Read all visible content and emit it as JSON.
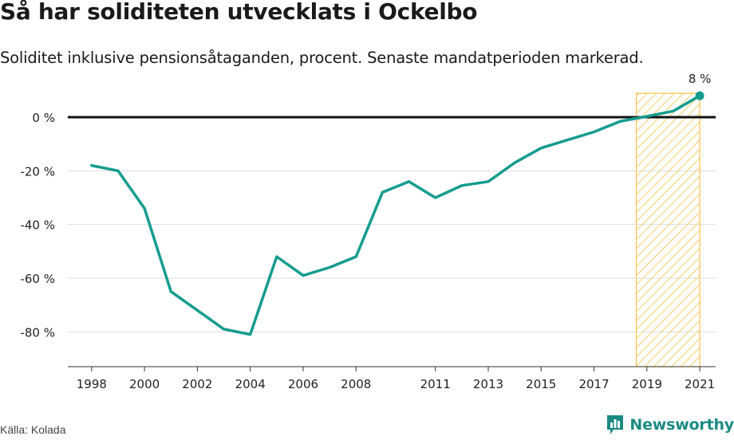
{
  "title": "Så har soliditeten utvecklats i Ockelbo",
  "subtitle": "Soliditet inklusive pensionsåtaganden, procent. Senaste mandatperioden markerad.",
  "source": "Källa: Kolada",
  "brand": "Newsworthy",
  "colors": {
    "line": "#159c8f",
    "highlight": "#f5c24a",
    "zero": "#111111",
    "grid": "#dddddd"
  },
  "chart_data": {
    "type": "line",
    "title": "Så har soliditeten utvecklats i Ockelbo",
    "subtitle": "Soliditet inklusive pensionsåtaganden, procent. Senaste mandatperioden markerad.",
    "xlabel": "",
    "ylabel": "",
    "ylim": [
      -93,
      11
    ],
    "xlim": [
      1997.1,
      2021.6
    ],
    "yticks": [
      0,
      -20,
      -40,
      -60,
      -80
    ],
    "ytick_labels": [
      "0 %",
      "-20 %",
      "-40 %",
      "-60 %",
      "-80 %"
    ],
    "xticks": [
      1998,
      2000,
      2002,
      2004,
      2006,
      2008,
      2011,
      2013,
      2015,
      2017,
      2019,
      2021
    ],
    "xtick_labels": [
      "1998",
      "2000",
      "2002",
      "2004",
      "2006",
      "2008",
      "2011",
      "2013",
      "2015",
      "2017",
      "2019",
      "2021"
    ],
    "grid": true,
    "highlight_period": [
      2018.6,
      2021
    ],
    "end_label": "8 %",
    "series": [
      {
        "x": [
          1998,
          1999,
          2000,
          2001,
          2002,
          2003,
          2004,
          2005,
          2006,
          2007,
          2008,
          2009,
          2010,
          2011,
          2012,
          2013,
          2014,
          2015,
          2016,
          2017,
          2018,
          2019,
          2020,
          2021
        ],
        "values": [
          -18,
          -20,
          -34,
          -65,
          -72,
          -79,
          -81,
          -52,
          -59,
          -56,
          -52,
          -28,
          -24,
          -30,
          -25.5,
          -24,
          -17,
          -11.5,
          -8.5,
          -5.5,
          -1.5,
          0.3,
          2.3,
          8
        ]
      }
    ]
  }
}
